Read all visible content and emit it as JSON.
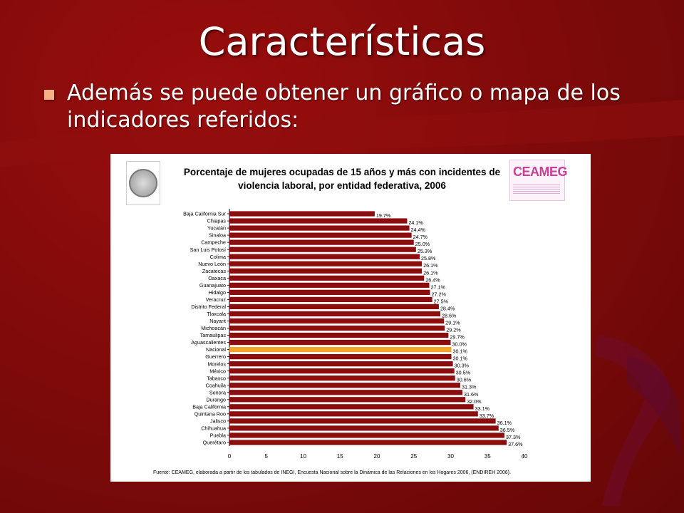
{
  "slide": {
    "title": "Características",
    "bullet": "Además se puede obtener un gráfico o mapa de los indicadores referidos:"
  },
  "colors": {
    "background": "#7d0a0a",
    "bar": "#8b0d0d",
    "highlight_bar": "#f2a52c",
    "bullet": "#f4b183"
  },
  "panel": {
    "seal_icon": "camara-de-diputados-seal-icon",
    "logo_text": "CEAMEG",
    "source": "Fuente: CEAMEG, elaborada a partir de los tabulados de INEGI, Encuesta Nacional sobre la Dinámica de las Relaciones en los Hogares 2006, (ENDIREH 2006)."
  },
  "chart_data": {
    "type": "bar",
    "orientation": "horizontal",
    "title": "Porcentaje de mujeres ocupadas de 15 años y más con incidentes de violencia laboral, por entidad federativa, 2006",
    "xlim": [
      0,
      40
    ],
    "xticks": [
      0,
      5,
      10,
      15,
      20,
      25,
      30,
      35,
      40
    ],
    "highlight_category": "Nacional",
    "categories": [
      "Baja California Sur",
      "Chiapas",
      "Yucatán",
      "Sinaloa",
      "Campeche",
      "San Luis Potosí",
      "Colima",
      "Nuevo León",
      "Zacatecas",
      "Oaxaca",
      "Guanajuato",
      "Hidalgo",
      "Veracruz",
      "Distrito Federal",
      "Tlaxcala",
      "Nayarit",
      "Michoacán",
      "Tamaulipas",
      "Aguascalientes",
      "Nacional",
      "Guerrero",
      "Morelos",
      "México",
      "Tabasco",
      "Coahuila",
      "Sonora",
      "Durango",
      "Baja California",
      "Quintana Roo",
      "Jalisco",
      "Chihuahua",
      "Puebla",
      "Querétaro"
    ],
    "values": [
      19.7,
      24.1,
      24.4,
      24.7,
      25.0,
      25.3,
      25.8,
      26.1,
      26.1,
      26.4,
      27.1,
      27.2,
      27.5,
      28.4,
      28.6,
      29.1,
      29.2,
      29.7,
      30.0,
      30.1,
      30.1,
      30.3,
      30.5,
      30.6,
      31.3,
      31.6,
      32.0,
      33.1,
      33.7,
      36.1,
      36.5,
      37.3,
      37.6
    ],
    "value_labels": [
      "19.7%",
      "24.1%",
      "24.4%",
      "24.7%",
      "25.0%",
      "25.3%",
      "25.8%",
      "26.1%",
      "26.1%",
      "26.4%",
      "27.1%",
      "27.2%",
      "27.5%",
      "28.4%",
      "28.6%",
      "29.1%",
      "29.2%",
      "29.7%",
      "30.0%",
      "30.1%",
      "30.1%",
      "30.3%",
      "30.5%",
      "30.6%",
      "31.3%",
      "31.6%",
      "32.0%",
      "33.1%",
      "33.7%",
      "36.1%",
      "36.5%",
      "37.3%",
      "37.6%"
    ]
  }
}
